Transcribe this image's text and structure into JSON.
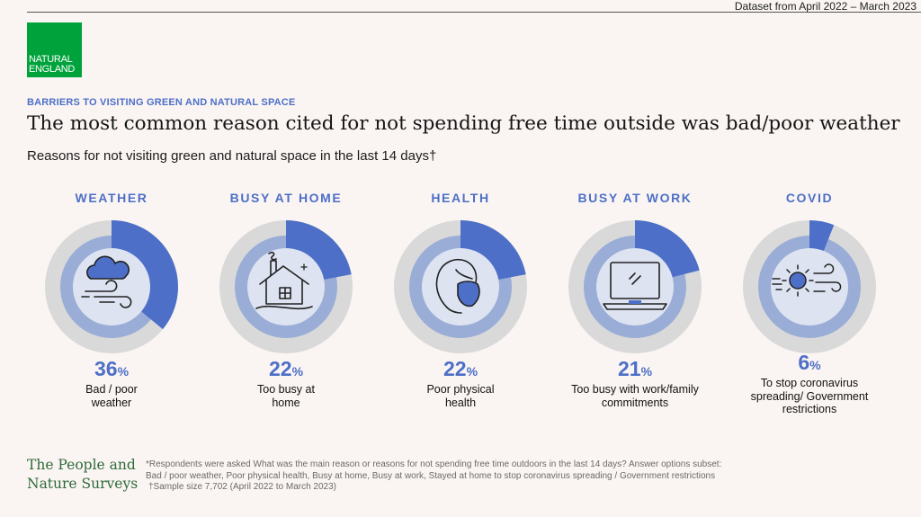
{
  "header": {
    "dataset_note": "Dataset from April 2022 – March 2023",
    "logo_line1": "NATURAL",
    "logo_line2": "ENGLAND",
    "kicker": "BARRIERS TO VISITING GREEN AND NATURAL SPACE",
    "title": "The most common reason cited for not spending free time outside was bad/poor weather",
    "subtitle": "Reasons for not visiting green and natural space in the last 14 days†"
  },
  "colors": {
    "accent": "#4d6fc7",
    "ring_bg": "#d9d9d9",
    "inner_fill": "#9aadd6",
    "center_fill": "#dde3f1",
    "brand_green": "#00a33b"
  },
  "chart_data": {
    "type": "pie",
    "unit": "%",
    "categories": [
      "WEATHER",
      "BUSY AT HOME",
      "HEALTH",
      "BUSY AT WORK",
      "COVID"
    ],
    "values": [
      36,
      22,
      22,
      21,
      6
    ],
    "labels": [
      "Bad / poor weather",
      "Too busy at home",
      "Poor physical health",
      "Too busy with work/family commitments",
      "To stop coronavirus spreading/ Government restrictions"
    ],
    "icons": [
      "cloud-wind-icon",
      "house-icon",
      "person-mask-icon",
      "laptop-icon",
      "virus-wind-icon"
    ]
  },
  "footer": {
    "brand_line1": "The People and",
    "brand_line2": "Nature Surveys",
    "note1": "*Respondents were asked What was the main reason or reasons for not spending free time outdoors in the last 14 days? Answer options subset:",
    "note2": "Bad / poor weather, Poor physical health, Busy at home, Busy at work, Stayed at home to stop coronavirus spreading / Government restrictions",
    "note3": "†Sample size 7,702 (April 2022 to March 2023)"
  }
}
